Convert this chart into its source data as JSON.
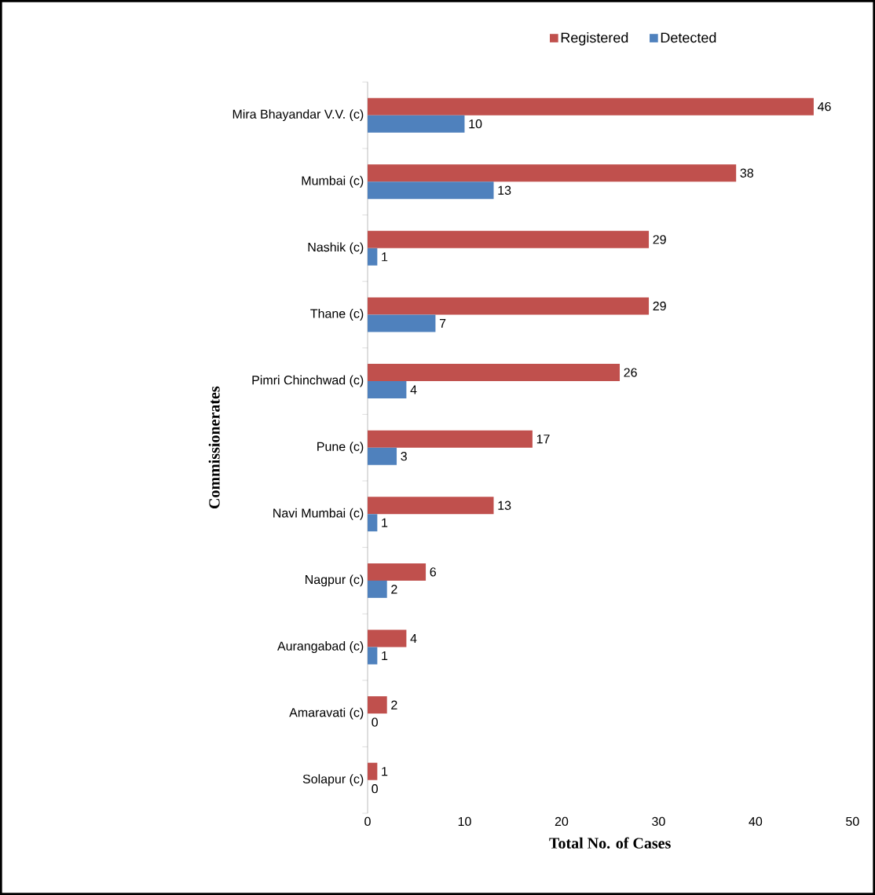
{
  "chart_data": {
    "type": "bar",
    "orientation": "horizontal",
    "xlabel": "Total No. of Cases",
    "ylabel": "Commissionerates",
    "categories": [
      "Mira Bhayandar V.V. (c)",
      "Mumbai (c)",
      "Nashik (c)",
      "Thane (c)",
      "Pimri Chinchwad (c)",
      "Pune (c)",
      "Navi Mumbai (c)",
      "Nagpur (c)",
      "Aurangabad (c)",
      "Amaravati (c)",
      "Solapur (c)"
    ],
    "series": [
      {
        "name": "Registered",
        "color": "#c0504d",
        "values": [
          46,
          38,
          29,
          29,
          26,
          17,
          13,
          6,
          4,
          2,
          1
        ]
      },
      {
        "name": "Detected",
        "color": "#4f81bd",
        "values": [
          10,
          13,
          1,
          7,
          4,
          3,
          1,
          2,
          1,
          0,
          0
        ]
      }
    ],
    "xlim": [
      0,
      50
    ],
    "xticks": [
      0,
      10,
      20,
      30,
      40,
      50
    ],
    "data_labels": true,
    "legend": "top",
    "grid": false
  }
}
